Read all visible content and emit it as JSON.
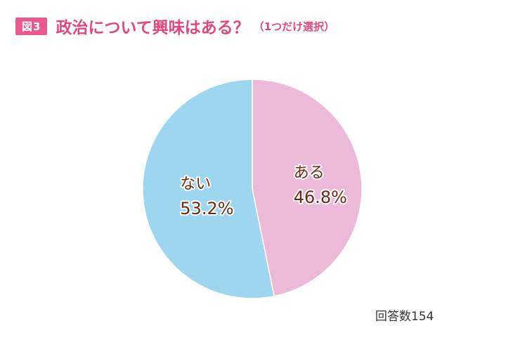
{
  "header": {
    "badge": "図3",
    "title": "政治について興味はある？",
    "subtitle": "（1つだけ選択）"
  },
  "chart_data": {
    "type": "pie",
    "title": "政治について興味はある？",
    "slices": [
      {
        "label": "ある",
        "value": 46.8,
        "display": "46.8%",
        "color": "#ecbad8"
      },
      {
        "label": "ない",
        "value": 53.2,
        "display": "53.2%",
        "color": "#9ed6ef"
      }
    ],
    "start": "top",
    "direction": "clockwise",
    "note": "回答数154"
  }
}
